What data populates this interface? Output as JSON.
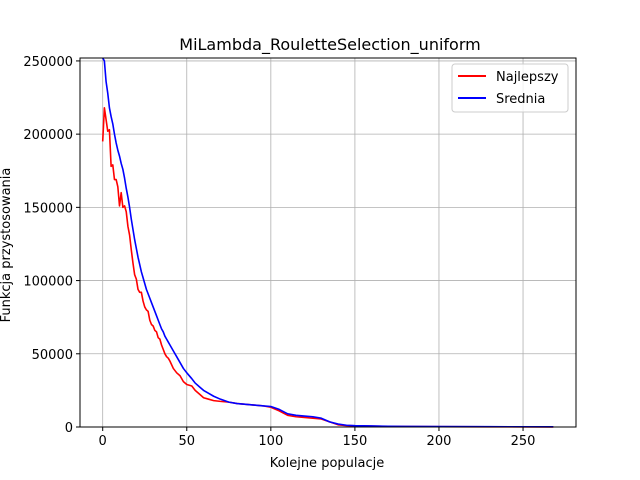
{
  "chart_data": {
    "type": "line",
    "title": "MiLambda_RouletteSelection_uniform",
    "xlabel": "Kolejne populacje",
    "ylabel": "Funkcja przystosowania",
    "xlim": [
      -13.5,
      281.5
    ],
    "ylim": [
      0,
      252000
    ],
    "xticks": [
      0,
      50,
      100,
      150,
      200,
      250
    ],
    "yticks": [
      0,
      50000,
      100000,
      150000,
      200000,
      250000
    ],
    "grid": true,
    "legend_position": "top-right",
    "series": [
      {
        "name": "Najlepszy",
        "color": "#ff0000",
        "points": [
          [
            0,
            195000
          ],
          [
            1,
            218000
          ],
          [
            2,
            210000
          ],
          [
            3,
            202000
          ],
          [
            4,
            203000
          ],
          [
            5,
            178000
          ],
          [
            6,
            179000
          ],
          [
            7,
            169000
          ],
          [
            8,
            169000
          ],
          [
            9,
            164000
          ],
          [
            10,
            151000
          ],
          [
            11,
            160000
          ],
          [
            12,
            150000
          ],
          [
            13,
            151000
          ],
          [
            14,
            147000
          ],
          [
            15,
            137000
          ],
          [
            16,
            131000
          ],
          [
            17,
            121000
          ],
          [
            18,
            112000
          ],
          [
            19,
            104000
          ],
          [
            20,
            101000
          ],
          [
            21,
            94000
          ],
          [
            22,
            92000
          ],
          [
            23,
            92000
          ],
          [
            24,
            86000
          ],
          [
            25,
            82000
          ],
          [
            26,
            80000
          ],
          [
            27,
            79000
          ],
          [
            28,
            73000
          ],
          [
            29,
            70000
          ],
          [
            30,
            69000
          ],
          [
            31,
            66000
          ],
          [
            32,
            65000
          ],
          [
            33,
            61000
          ],
          [
            34,
            60000
          ],
          [
            35,
            56000
          ],
          [
            36,
            53000
          ],
          [
            37,
            50000
          ],
          [
            38,
            48000
          ],
          [
            39,
            47000
          ],
          [
            40,
            45000
          ],
          [
            42,
            40000
          ],
          [
            44,
            37000
          ],
          [
            46,
            35000
          ],
          [
            48,
            31000
          ],
          [
            50,
            29000
          ],
          [
            53,
            28000
          ],
          [
            55,
            25000
          ],
          [
            58,
            22000
          ],
          [
            60,
            20000
          ],
          [
            63,
            19000
          ],
          [
            66,
            18000
          ],
          [
            70,
            17500
          ],
          [
            75,
            17000
          ],
          [
            80,
            16000
          ],
          [
            85,
            15500
          ],
          [
            90,
            15000
          ],
          [
            95,
            14500
          ],
          [
            100,
            13500
          ],
          [
            105,
            11000
          ],
          [
            110,
            8000
          ],
          [
            115,
            7000
          ],
          [
            120,
            6500
          ],
          [
            125,
            6000
          ],
          [
            130,
            5500
          ],
          [
            135,
            3500
          ],
          [
            140,
            1500
          ],
          [
            145,
            1000
          ],
          [
            150,
            800
          ],
          [
            160,
            600
          ],
          [
            170,
            400
          ],
          [
            180,
            300
          ],
          [
            200,
            200
          ],
          [
            230,
            100
          ],
          [
            268,
            50
          ]
        ]
      },
      {
        "name": "Srednia",
        "color": "#0000ff",
        "points": [
          [
            0,
            252000
          ],
          [
            1,
            250000
          ],
          [
            2,
            236000
          ],
          [
            3,
            228000
          ],
          [
            4,
            218000
          ],
          [
            5,
            212000
          ],
          [
            6,
            207000
          ],
          [
            7,
            200000
          ],
          [
            8,
            194000
          ],
          [
            9,
            189000
          ],
          [
            10,
            185000
          ],
          [
            11,
            180000
          ],
          [
            12,
            176000
          ],
          [
            13,
            170000
          ],
          [
            14,
            163000
          ],
          [
            15,
            157000
          ],
          [
            16,
            150000
          ],
          [
            17,
            142000
          ],
          [
            18,
            135000
          ],
          [
            19,
            128000
          ],
          [
            20,
            122000
          ],
          [
            21,
            116000
          ],
          [
            22,
            111000
          ],
          [
            23,
            106000
          ],
          [
            24,
            102000
          ],
          [
            25,
            98000
          ],
          [
            26,
            94000
          ],
          [
            27,
            91000
          ],
          [
            28,
            88000
          ],
          [
            29,
            85000
          ],
          [
            30,
            82000
          ],
          [
            31,
            79000
          ],
          [
            32,
            76000
          ],
          [
            33,
            73000
          ],
          [
            34,
            70000
          ],
          [
            35,
            67000
          ],
          [
            36,
            65000
          ],
          [
            37,
            62000
          ],
          [
            38,
            60000
          ],
          [
            39,
            58000
          ],
          [
            40,
            56000
          ],
          [
            42,
            52000
          ],
          [
            44,
            48000
          ],
          [
            46,
            44000
          ],
          [
            48,
            40000
          ],
          [
            50,
            37000
          ],
          [
            53,
            33000
          ],
          [
            55,
            30000
          ],
          [
            58,
            27000
          ],
          [
            60,
            25000
          ],
          [
            63,
            23000
          ],
          [
            66,
            21000
          ],
          [
            70,
            19000
          ],
          [
            75,
            17000
          ],
          [
            80,
            16000
          ],
          [
            85,
            15500
          ],
          [
            90,
            15000
          ],
          [
            95,
            14500
          ],
          [
            100,
            14000
          ],
          [
            105,
            12000
          ],
          [
            110,
            9000
          ],
          [
            115,
            8000
          ],
          [
            120,
            7500
          ],
          [
            125,
            7000
          ],
          [
            130,
            6000
          ],
          [
            135,
            3500
          ],
          [
            140,
            2000
          ],
          [
            145,
            1200
          ],
          [
            150,
            900
          ],
          [
            160,
            700
          ],
          [
            170,
            500
          ],
          [
            180,
            400
          ],
          [
            200,
            300
          ],
          [
            230,
            200
          ],
          [
            268,
            100
          ]
        ]
      }
    ]
  }
}
